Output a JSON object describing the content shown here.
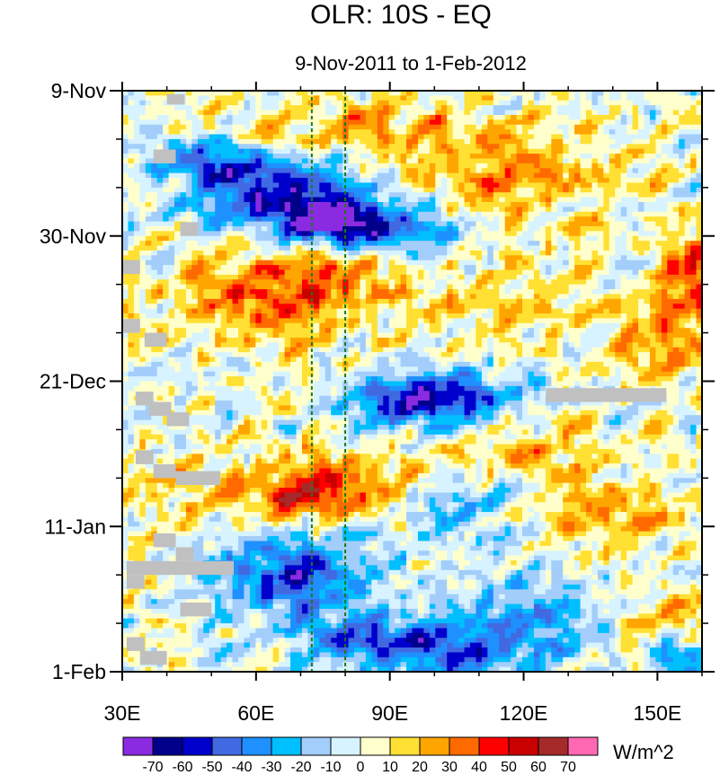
{
  "chart_data": {
    "type": "heatmap",
    "title": "OLR: 10S - EQ",
    "subtitle": "9-Nov-2011 to 1-Feb-2012",
    "units": "W/m^2",
    "x_axis": {
      "range": [
        30,
        160
      ],
      "ticks": [
        30,
        60,
        90,
        120,
        150
      ],
      "tick_labels": [
        "30E",
        "60E",
        "90E",
        "120E",
        "150E"
      ],
      "minor_step": 10
    },
    "y_axis": {
      "range_days": [
        0,
        84
      ],
      "ticks_days": [
        0,
        21,
        42,
        63,
        84
      ],
      "tick_labels": [
        "9-Nov",
        "30-Nov",
        "21-Dec",
        "11-Jan",
        "1-Feb"
      ],
      "minor_step_days": 7,
      "direction": "time increases downward"
    },
    "reference_lines_lon": [
      72.5,
      80
    ],
    "colorbar": {
      "levels": [
        -70,
        -60,
        -50,
        -40,
        -30,
        -20,
        -10,
        0,
        10,
        20,
        30,
        40,
        50,
        60,
        70
      ],
      "labels": [
        "-70",
        "-60",
        "-50",
        "-40",
        "-30",
        "-20",
        "-10",
        "0",
        "10",
        "20",
        "30",
        "40",
        "50",
        "60",
        "70"
      ],
      "colors": [
        "#8a2be2",
        "#00008b",
        "#0000cd",
        "#4169e1",
        "#1e90ff",
        "#00bfff",
        "#a3cdfa",
        "#d7f3ff",
        "#ffffcc",
        "#ffe033",
        "#ffa500",
        "#ff6a00",
        "#ff0000",
        "#c80000",
        "#a52a2a",
        "#ff69b4"
      ]
    },
    "missing_color": "#c0c0c0",
    "anomaly_features": [
      {
        "lon_center": 62,
        "day_center": 14,
        "lon_sigma": 13,
        "day_sigma": 4,
        "value": -50
      },
      {
        "lon_center": 88,
        "day_center": 20,
        "lon_sigma": 11,
        "day_sigma": 2.5,
        "value": -45
      },
      {
        "lon_center": 75,
        "day_center": 18,
        "lon_sigma": 8,
        "day_sigma": 3,
        "value": -55
      },
      {
        "lon_center": 48,
        "day_center": 10,
        "lon_sigma": 7,
        "day_sigma": 2,
        "value": -35
      },
      {
        "lon_center": 85,
        "day_center": 6,
        "lon_sigma": 22,
        "day_sigma": 3,
        "value": 25
      },
      {
        "lon_center": 118,
        "day_center": 13,
        "lon_sigma": 16,
        "day_sigma": 4,
        "value": 25
      },
      {
        "lon_center": 62,
        "day_center": 30,
        "lon_sigma": 14,
        "day_sigma": 5,
        "value": 35
      },
      {
        "lon_center": 75,
        "day_center": 26,
        "lon_sigma": 8,
        "day_sigma": 3,
        "value": 25
      },
      {
        "lon_center": 110,
        "day_center": 30,
        "lon_sigma": 15,
        "day_sigma": 4,
        "value": 15
      },
      {
        "lon_center": 95,
        "day_center": 45,
        "lon_sigma": 10,
        "day_sigma": 2.5,
        "value": -45
      },
      {
        "lon_center": 105,
        "day_center": 44,
        "lon_sigma": 14,
        "day_sigma": 3,
        "value": -30
      },
      {
        "lon_center": 150,
        "day_center": 36,
        "lon_sigma": 11,
        "day_sigma": 5,
        "value": 25
      },
      {
        "lon_center": 158,
        "day_center": 26,
        "lon_sigma": 5,
        "day_sigma": 4,
        "value": 45
      },
      {
        "lon_center": 80,
        "day_center": 56,
        "lon_sigma": 20,
        "day_sigma": 3,
        "value": 25
      },
      {
        "lon_center": 72,
        "day_center": 59,
        "lon_sigma": 8,
        "day_sigma": 2,
        "value": 40
      },
      {
        "lon_center": 135,
        "day_center": 61,
        "lon_sigma": 15,
        "day_sigma": 3,
        "value": 28
      },
      {
        "lon_center": 122,
        "day_center": 52,
        "lon_sigma": 12,
        "day_sigma": 3,
        "value": 18
      },
      {
        "lon_center": 108,
        "day_center": 60,
        "lon_sigma": 12,
        "day_sigma": 4,
        "value": -30
      },
      {
        "lon_center": 68,
        "day_center": 70,
        "lon_sigma": 12,
        "day_sigma": 4,
        "value": -50
      },
      {
        "lon_center": 98,
        "day_center": 80,
        "lon_sigma": 18,
        "day_sigma": 3,
        "value": -55
      },
      {
        "lon_center": 125,
        "day_center": 75,
        "lon_sigma": 12,
        "day_sigma": 4,
        "value": -25
      },
      {
        "lon_center": 150,
        "day_center": 76,
        "lon_sigma": 10,
        "day_sigma": 4,
        "value": 20
      },
      {
        "lon_center": 155,
        "day_center": 82,
        "lon_sigma": 5,
        "day_sigma": 2,
        "value": -45
      },
      {
        "lon_center": 40,
        "day_center": 60,
        "lon_sigma": 6,
        "day_sigma": 8,
        "value": 8
      }
    ],
    "missing_regions": [
      {
        "lon": [
          40,
          44
        ],
        "days": [
          0.5,
          2
        ]
      },
      {
        "lon": [
          37,
          42
        ],
        "days": [
          8.5,
          10.5
        ]
      },
      {
        "lon": [
          43,
          47
        ],
        "days": [
          19,
          21
        ]
      },
      {
        "lon": [
          30,
          34
        ],
        "days": [
          24.5,
          26.5
        ]
      },
      {
        "lon": [
          30,
          34
        ],
        "days": [
          33,
          35
        ]
      },
      {
        "lon": [
          35,
          40
        ],
        "days": [
          35,
          37
        ]
      },
      {
        "lon": [
          33,
          37
        ],
        "days": [
          43.5,
          45.5
        ]
      },
      {
        "lon": [
          36,
          41
        ],
        "days": [
          45,
          47
        ]
      },
      {
        "lon": [
          40,
          45
        ],
        "days": [
          46.5,
          48.5
        ]
      },
      {
        "lon": [
          33,
          37
        ],
        "days": [
          52,
          54
        ]
      },
      {
        "lon": [
          37,
          42
        ],
        "days": [
          54,
          56
        ]
      },
      {
        "lon": [
          42,
          52
        ],
        "days": [
          55,
          57
        ]
      },
      {
        "lon": [
          37,
          42
        ],
        "days": [
          64,
          66
        ]
      },
      {
        "lon": [
          42,
          46
        ],
        "days": [
          66,
          68
        ]
      },
      {
        "lon": [
          31,
          55
        ],
        "days": [
          68,
          70
        ]
      },
      {
        "lon": [
          31,
          35
        ],
        "days": [
          70,
          72
        ]
      },
      {
        "lon": [
          43,
          50
        ],
        "days": [
          74,
          76
        ]
      },
      {
        "lon": [
          31,
          35
        ],
        "days": [
          79,
          81
        ]
      },
      {
        "lon": [
          34,
          40
        ],
        "days": [
          81,
          83
        ]
      },
      {
        "lon": [
          125,
          152
        ],
        "days": [
          43,
          45
        ]
      }
    ]
  }
}
